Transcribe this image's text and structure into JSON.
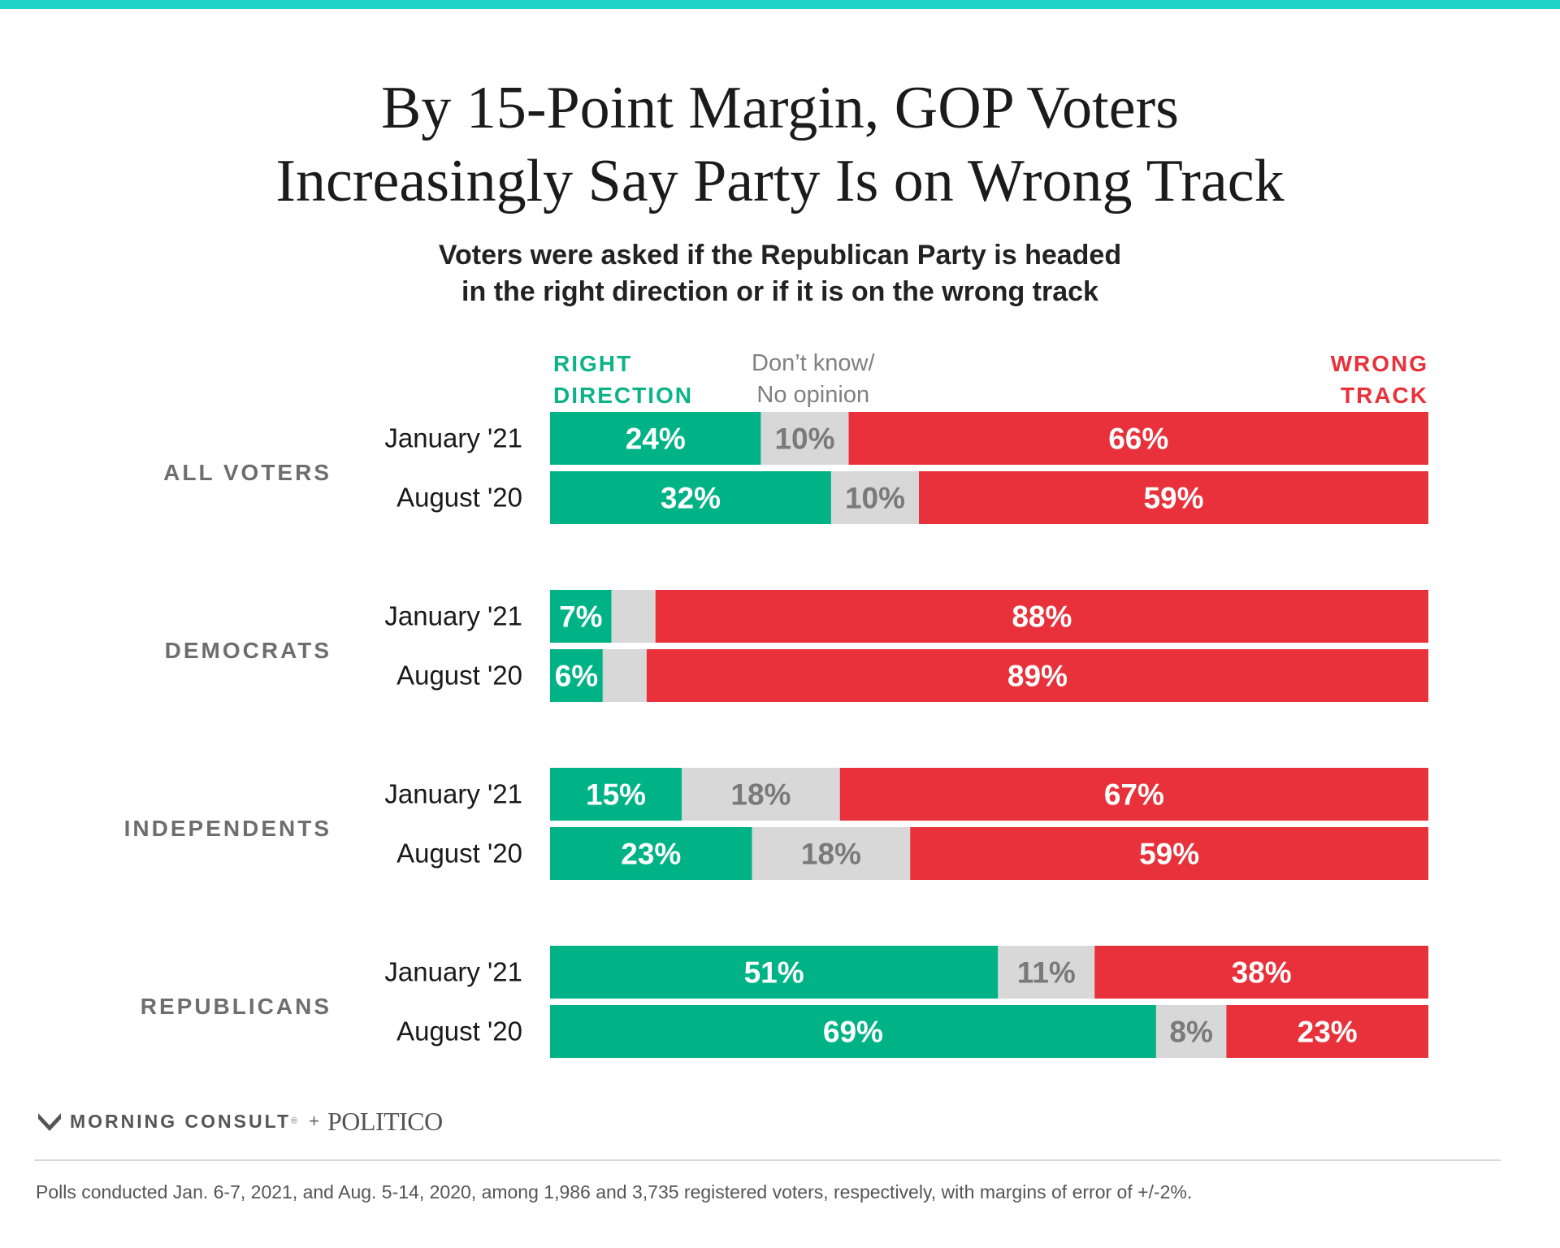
{
  "chart_data": {
    "type": "bar",
    "orientation": "horizontal",
    "stacked": true,
    "title": [
      "By 15-Point Margin, GOP Voters",
      "Increasingly Say Party Is on Wrong Track"
    ],
    "subtitle": [
      "Voters were asked if the Republican Party is headed",
      "in the right direction or if it is on the wrong track"
    ],
    "legend": {
      "right_direction": [
        "RIGHT",
        "DIRECTION"
      ],
      "dont_know": [
        "Don’t know/",
        "No opinion"
      ],
      "wrong_track": [
        "WRONG",
        "TRACK"
      ]
    },
    "colors": {
      "right_direction": "#00b386",
      "dont_know": "#d8d8d8",
      "wrong_track": "#e8313a",
      "group_label": "#6e6e6e",
      "dk_label": "#7a7a7a"
    },
    "xlim": [
      0,
      100
    ],
    "groups": [
      {
        "name": "ALL VOTERS",
        "rows": [
          {
            "label": "January '21",
            "right": 24,
            "dk": 10,
            "wrong": 66,
            "labels": [
              "24%",
              "10%",
              "66%"
            ]
          },
          {
            "label": "August '20",
            "right": 32,
            "dk": 10,
            "wrong": 59,
            "labels": [
              "32%",
              "10%",
              "59%"
            ]
          }
        ]
      },
      {
        "name": "DEMOCRATS",
        "rows": [
          {
            "label": "January '21",
            "right": 7,
            "dk": 5,
            "wrong": 88,
            "labels": [
              "7%",
              "",
              "88%"
            ]
          },
          {
            "label": "August '20",
            "right": 6,
            "dk": 5,
            "wrong": 89,
            "labels": [
              "6%",
              "",
              "89%"
            ]
          }
        ]
      },
      {
        "name": "INDEPENDENTS",
        "rows": [
          {
            "label": "January '21",
            "right": 15,
            "dk": 18,
            "wrong": 67,
            "labels": [
              "15%",
              "18%",
              "67%"
            ]
          },
          {
            "label": "August '20",
            "right": 23,
            "dk": 18,
            "wrong": 59,
            "labels": [
              "23%",
              "18%",
              "59%"
            ]
          }
        ]
      },
      {
        "name": "REPUBLICANS",
        "rows": [
          {
            "label": "January '21",
            "right": 51,
            "dk": 11,
            "wrong": 38,
            "labels": [
              "51%",
              "11%",
              "38%"
            ]
          },
          {
            "label": "August '20",
            "right": 69,
            "dk": 8,
            "wrong": 23,
            "labels": [
              "69%",
              "8%",
              "23%"
            ]
          }
        ]
      }
    ]
  },
  "footer": {
    "brand_mc": "MORNING CONSULT",
    "brand_reg": "®",
    "brand_plus": "+",
    "brand_politico": "POLITICO",
    "note": "Polls conducted Jan. 6-7, 2021, and Aug. 5-14, 2020, among 1,986 and 3,735 registered voters, respectively, with margins of error of +/-2%."
  }
}
